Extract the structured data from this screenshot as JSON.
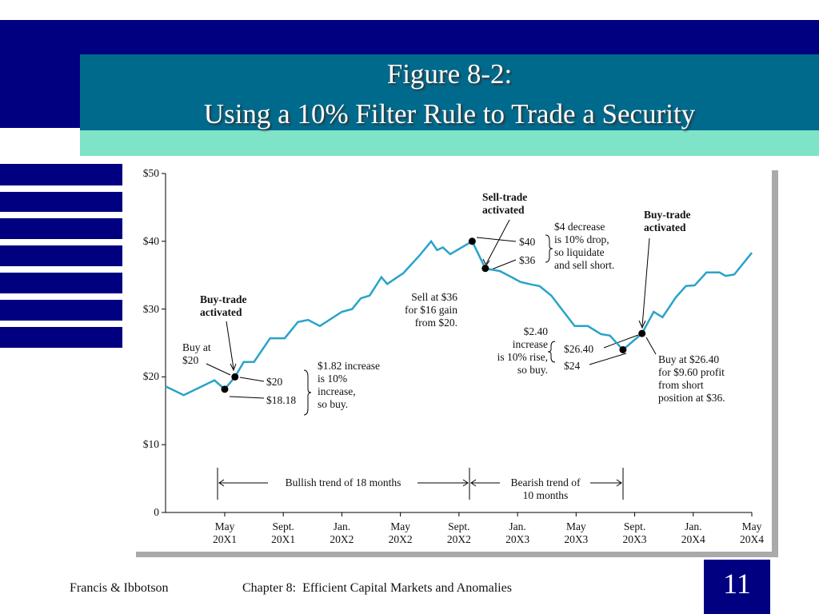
{
  "chart_data": {
    "type": "line",
    "title": "Figure 8-2:\nUsing a 10% Filter Rule to Trade a Security",
    "x": [
      -4.04,
      -2.8,
      -0.7,
      0,
      0.7,
      1.3,
      2.0,
      3.1,
      4.1,
      5.0,
      5.7,
      6.5,
      8.0,
      8.7,
      9.3,
      9.9,
      10.7,
      11.1,
      12.2,
      13.3,
      14.1,
      14.5,
      14.9,
      15.4,
      16.9,
      17.8,
      18.8,
      19.6,
      20.2,
      21.0,
      21.5,
      22.3,
      23.9,
      24.8,
      25.7,
      26.3,
      27.2,
      28.5,
      29.3,
      29.9,
      30.8,
      31.5,
      32.1,
      32.9,
      33.8,
      34.2,
      34.8,
      36.0
    ],
    "values": [
      18.6,
      17.3,
      19.5,
      18.18,
      20,
      22.2,
      22.2,
      25.7,
      25.7,
      28.1,
      28.4,
      27.5,
      29.6,
      30.0,
      31.6,
      32.0,
      34.7,
      33.7,
      35.3,
      37.9,
      40.0,
      38.7,
      39.1,
      38.1,
      40,
      36,
      35.6,
      34.7,
      34.0,
      33.6,
      33.4,
      32.0,
      27.5,
      27.5,
      26.3,
      26.1,
      24,
      26.4,
      29.6,
      28.8,
      31.7,
      33.4,
      33.5,
      35.4,
      35.4,
      34.9,
      35.1,
      38.3
    ],
    "color": "#29a3c8",
    "markers": {
      "x": [
        0,
        0.7,
        16.9,
        17.8,
        27.2,
        28.5
      ],
      "values": [
        18.18,
        20,
        40,
        36,
        24,
        26.4
      ],
      "color": "#000000"
    },
    "xlim": [
      -4.04,
      36
    ],
    "xticks": [
      {
        "value": 0,
        "label": "May 20X1"
      },
      {
        "value": 4,
        "label": "Sept. 20X1"
      },
      {
        "value": 8,
        "label": "Jan. 20X2"
      },
      {
        "value": 12,
        "label": "May 20X2"
      },
      {
        "value": 16,
        "label": "Sept. 20X2"
      },
      {
        "value": 20,
        "label": "Jan. 20X3"
      },
      {
        "value": 24,
        "label": "May 20X3"
      },
      {
        "value": 28,
        "label": "Sept. 20X3"
      },
      {
        "value": 32,
        "label": "Jan. 20X4"
      },
      {
        "value": 36,
        "label": "May 20X4"
      }
    ],
    "ylim": [
      0,
      50
    ],
    "yticks": [
      0,
      {
        "value": 10,
        "label": "$10"
      },
      {
        "value": 20,
        "label": "$20"
      },
      {
        "value": 30,
        "label": "$30"
      },
      {
        "value": 40,
        "label": "$40"
      },
      {
        "value": 50,
        "label": "$50"
      }
    ],
    "grid": false,
    "annotations": [
      "Sell-trade\nactivated",
      "Buy-trade\nactivated",
      "Buy-trade\nactivated",
      "$4 decrease\nis 10% drop,\nso liquidate\nand sell short.",
      "$40",
      "$36",
      "Sell at $36\nfor $16 gain\nfrom $20.",
      "$2.40\nincrease\nis 10% rise,\nso buy.",
      "$26.40",
      "$24",
      "Buy at $26.40\nfor $9.60 profit\nfrom short\nposition at $36.",
      "Buy at\n$20",
      "$20",
      "$18.18",
      "$1.82 increase\nis 10%\nincrease,\nso buy.",
      "Bullish trend of 18 months",
      "Bearish trend of\n10 months"
    ]
  },
  "footer": {
    "left": "Francis & Ibbotson",
    "center": "Chapter 8:  Efficient Capital Markets and Anomalies",
    "page": "11"
  }
}
